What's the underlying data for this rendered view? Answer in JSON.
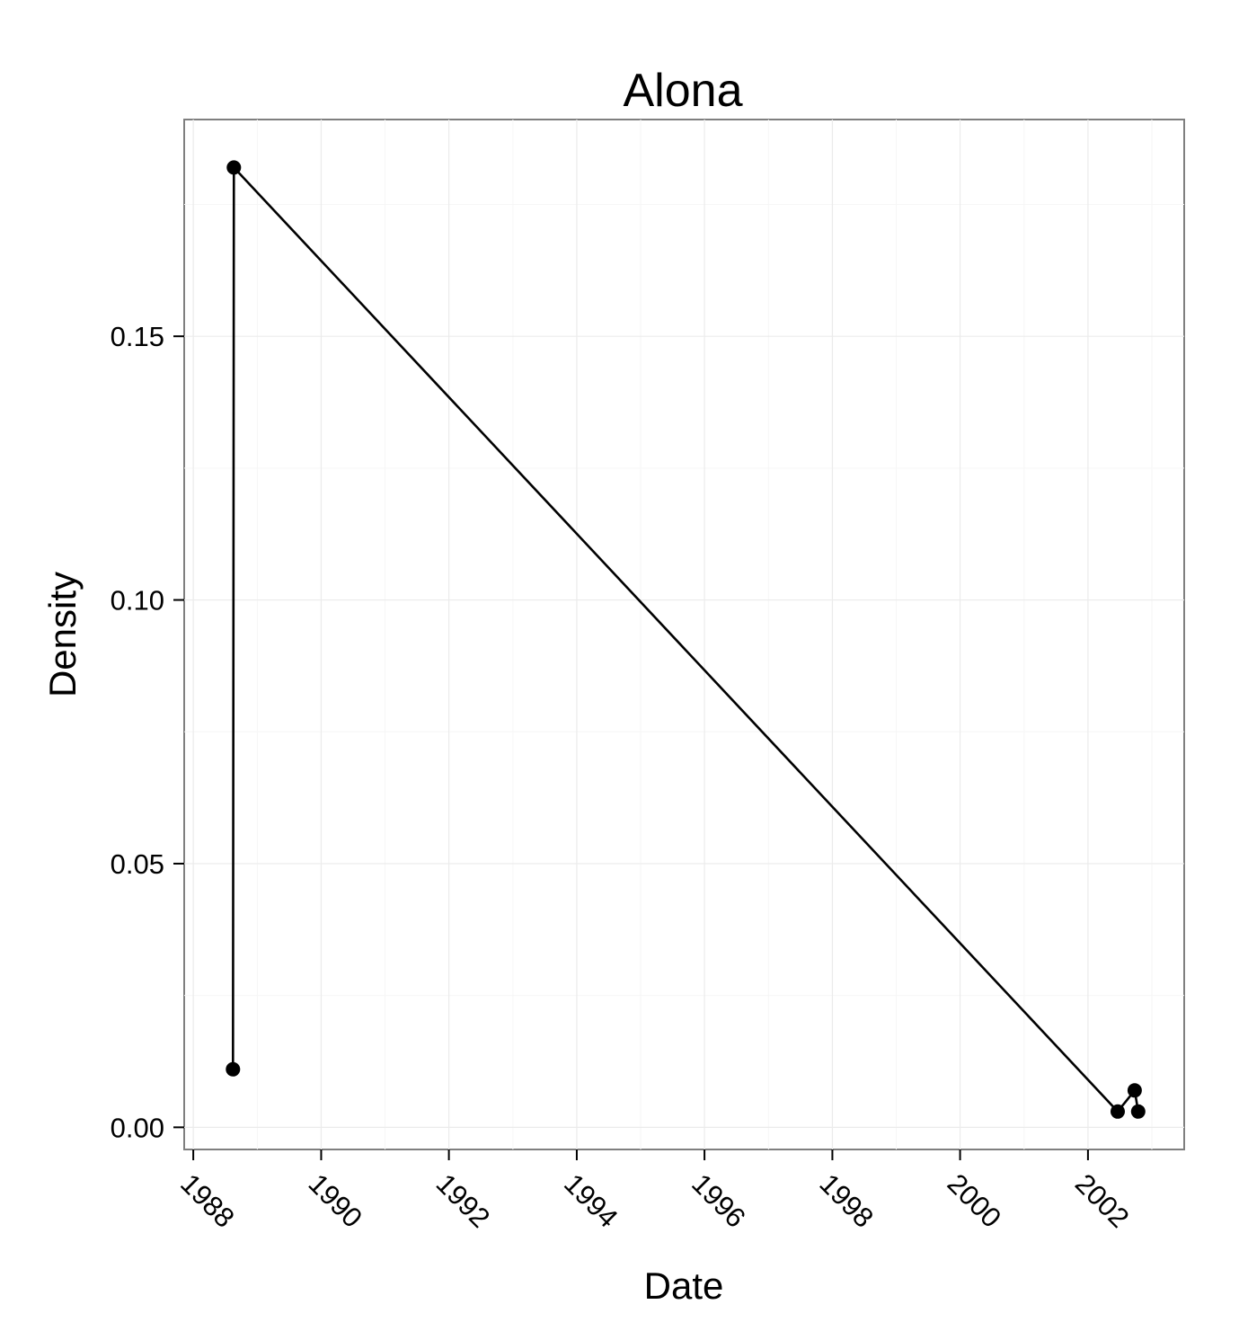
{
  "chart_data": {
    "type": "line",
    "title": "Alona",
    "xlabel": "Date",
    "ylabel": "Density",
    "x_ticks": [
      "1988",
      "1990",
      "1992",
      "1994",
      "1996",
      "1998",
      "2000",
      "2002"
    ],
    "y_ticks": [
      "0.00",
      "0.05",
      "0.10",
      "0.15"
    ],
    "xlim": [
      "1987-11-10",
      "2003-07-05"
    ],
    "ylim": [
      -0.0042,
      0.1911
    ],
    "grid": true,
    "legend": "none",
    "series": [
      {
        "color": "#000000",
        "points": [
          {
            "x": "1988-08-15",
            "y": 0.011
          },
          {
            "x": "1988-08-20",
            "y": 0.182
          },
          {
            "x": "2002-06-20",
            "y": 0.003
          },
          {
            "x": "2002-09-25",
            "y": 0.007
          },
          {
            "x": "2002-10-15",
            "y": 0.003
          }
        ]
      }
    ]
  }
}
